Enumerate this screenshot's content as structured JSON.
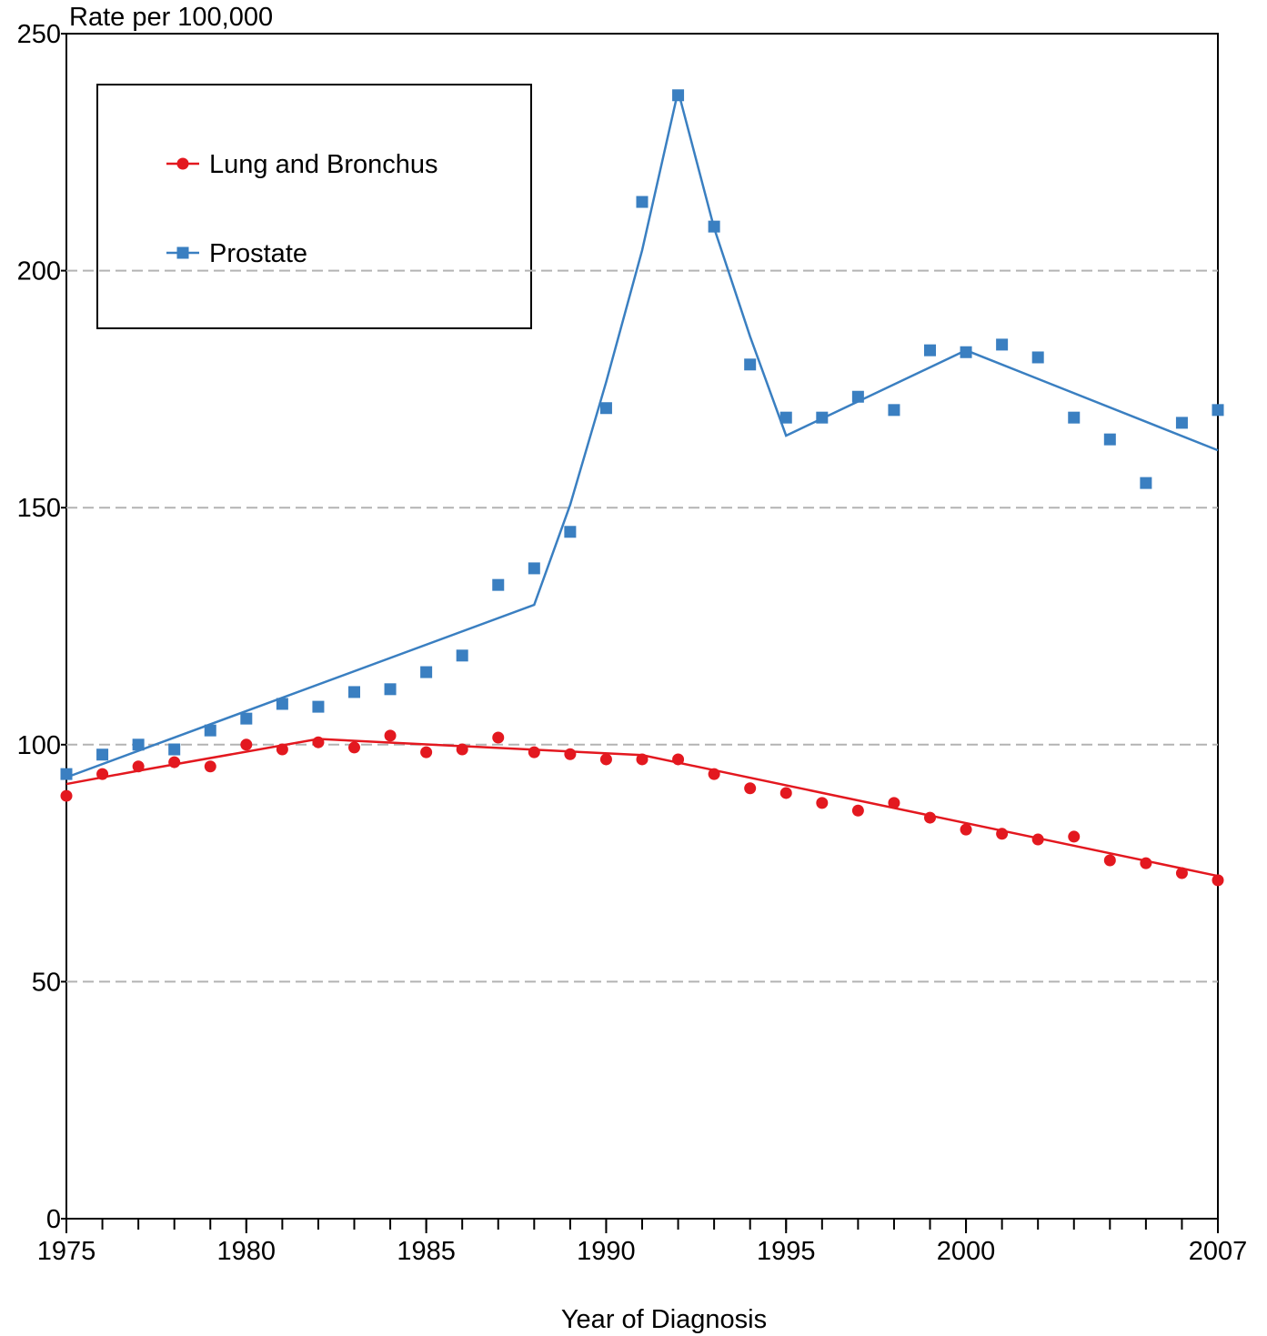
{
  "chart_data": {
    "type": "scatter",
    "y_label": "Rate per 100,000",
    "x_label": "Year of Diagnosis",
    "x": [
      1975,
      1976,
      1977,
      1978,
      1979,
      1980,
      1981,
      1982,
      1983,
      1984,
      1985,
      1986,
      1987,
      1988,
      1989,
      1990,
      1991,
      1992,
      1993,
      1994,
      1995,
      1996,
      1997,
      1998,
      1999,
      2000,
      2001,
      2002,
      2003,
      2004,
      2005,
      2006,
      2007
    ],
    "xlim": [
      1975,
      2007
    ],
    "xticks": [
      1975,
      1980,
      1985,
      1990,
      1995,
      2000,
      2007
    ],
    "ylim": [
      0,
      250
    ],
    "yticks": [
      0,
      50,
      100,
      150,
      200,
      250
    ],
    "grid": true,
    "legend": "upper left",
    "series": [
      {
        "name": "Lung and Bronchus",
        "color": "#e3181f",
        "marker": "circle",
        "values": [
          89.2,
          93.8,
          95.4,
          96.3,
          95.4,
          100.0,
          99.0,
          100.5,
          99.4,
          101.9,
          98.4,
          99.0,
          101.5,
          98.4,
          98.0,
          96.9,
          96.9,
          96.9,
          93.8,
          90.8,
          89.8,
          87.7,
          86.1,
          87.7,
          84.6,
          82.1,
          81.2,
          80.0,
          80.6,
          75.6,
          75.0,
          72.9,
          71.4
        ],
        "fit": {
          "x": [
            1975,
            1977,
            1982,
            1991,
            2007
          ],
          "values": [
            91.7,
            94.5,
            101.2,
            97.8,
            72.3
          ]
        }
      },
      {
        "name": "Prostate",
        "color": "#3a7fc1",
        "marker": "square",
        "values": [
          93.8,
          97.9,
          100.0,
          99.0,
          103.0,
          105.5,
          108.6,
          108.0,
          111.1,
          111.7,
          115.3,
          118.8,
          133.7,
          137.2,
          144.9,
          171.0,
          214.5,
          237.0,
          209.3,
          180.2,
          169.0,
          169.0,
          173.4,
          170.6,
          183.2,
          182.8,
          184.4,
          181.7,
          169.0,
          164.4,
          155.2,
          167.9,
          170.6
        ],
        "fit": {
          "x": [
            1975,
            1988,
            1989,
            1990,
            1991,
            1992,
            1993,
            1994,
            1995,
            2000,
            2007
          ],
          "values": [
            93.1,
            129.5,
            150.6,
            176.5,
            204.3,
            237.9,
            209.0,
            186.1,
            165.2,
            183.2,
            162.1
          ]
        }
      }
    ]
  }
}
